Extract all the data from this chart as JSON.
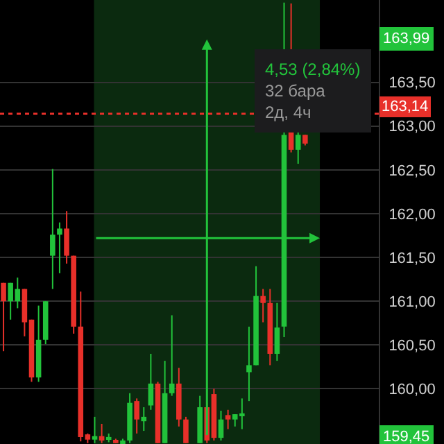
{
  "chart_data": {
    "type": "candlestick",
    "categories": [
      null,
      null,
      null,
      null,
      null,
      null,
      null,
      null,
      null,
      null,
      null,
      null,
      null,
      null,
      null,
      null,
      null,
      null,
      null,
      null,
      null,
      null,
      null,
      null,
      null,
      null,
      null,
      null,
      null,
      null,
      null,
      null,
      null,
      null,
      null,
      null,
      null,
      null,
      null,
      null,
      null,
      null,
      null,
      null,
      null,
      null,
      null,
      null,
      null,
      null,
      null,
      null,
      null,
      null
    ],
    "ohlc": [
      [
        161.21,
        161.21,
        160.43,
        161.0
      ],
      [
        161.0,
        161.21,
        160.79,
        161.21
      ],
      [
        161.0,
        161.27,
        160.92,
        161.14
      ],
      [
        161.14,
        161.14,
        160.6,
        160.76
      ],
      [
        160.79,
        160.79,
        160.08,
        160.13
      ],
      [
        160.13,
        160.95,
        160.08,
        160.56
      ],
      [
        160.56,
        161.0,
        160.51,
        161.0
      ],
      [
        161.52,
        162.51,
        161.14,
        161.76
      ],
      [
        161.76,
        161.9,
        161.32,
        161.83
      ],
      [
        161.83,
        162.03,
        161.43,
        161.52
      ],
      [
        161.52,
        161.52,
        160.63,
        160.71
      ],
      [
        160.71,
        161.11,
        159.4,
        159.45
      ],
      [
        159.48,
        159.49,
        159.38,
        159.42
      ],
      [
        159.42,
        159.68,
        159.38,
        159.46
      ],
      [
        159.46,
        159.6,
        159.38,
        159.41
      ],
      [
        159.42,
        159.49,
        159.39,
        159.45
      ],
      [
        159.41,
        159.43,
        159.38,
        159.38
      ],
      [
        159.38,
        159.43,
        159.38,
        159.41
      ],
      [
        159.41,
        159.95,
        159.38,
        159.84
      ],
      [
        159.86,
        159.89,
        159.49,
        159.65
      ],
      [
        159.63,
        159.79,
        159.52,
        159.68
      ],
      [
        159.81,
        160.4,
        159.76,
        160.06
      ],
      [
        160.06,
        160.08,
        159.38,
        159.38
      ],
      [
        159.38,
        160.32,
        159.38,
        159.95
      ],
      [
        159.95,
        160.84,
        159.92,
        160.06
      ],
      [
        160.06,
        160.24,
        159.57,
        159.65
      ],
      [
        159.65,
        159.68,
        159.38,
        159.38
      ],
      null,
      [
        159.38,
        159.92,
        159.38,
        159.79
      ],
      [
        159.79,
        159.84,
        159.38,
        159.41
      ],
      [
        159.94,
        160.0,
        159.41,
        159.44
      ],
      [
        159.44,
        159.75,
        159.41,
        159.65
      ],
      [
        159.7,
        159.76,
        159.54,
        159.65
      ],
      [
        159.65,
        159.71,
        159.57,
        159.71
      ],
      [
        159.7,
        159.89,
        159.54,
        159.72
      ],
      [
        160.19,
        160.71,
        159.86,
        160.27
      ],
      [
        160.27,
        161.4,
        160.27,
        161.06
      ],
      [
        161.06,
        161.14,
        160.76,
        160.98
      ],
      [
        160.98,
        161.14,
        160.27,
        160.4
      ],
      [
        160.4,
        160.98,
        160.32,
        160.7
      ],
      [
        160.71,
        164.41,
        160.59,
        162.9
      ],
      [
        162.94,
        164.4,
        162.7,
        162.73
      ],
      [
        162.73,
        162.94,
        162.57,
        162.9
      ],
      [
        162.9,
        162.9,
        162.78,
        162.8
      ],
      null,
      null,
      null,
      null,
      null,
      null,
      null,
      null,
      null,
      null
    ],
    "colors": [
      "#e8302a",
      "#22c33b",
      "#22c33b",
      "#e8302a",
      "#e8302a",
      "#22c33b",
      "#22c33b",
      "#22c33b",
      "#22c33b",
      "#e8302a",
      "#e8302a",
      "#e8302a",
      "#e8302a",
      "#22c33b",
      "#e8302a",
      "#22c33b",
      "#e8302a",
      "#22c33b",
      "#22c33b",
      "#e8302a",
      "#22c33b",
      "#22c33b",
      "#e8302a",
      "#22c33b",
      "#22c33b",
      "#e8302a",
      "#e8302a",
      null,
      "#22c33b",
      "#e8302a",
      "#e8302a",
      "#22c33b",
      "#e8302a",
      "#22c33b",
      "#22c33b",
      "#22c33b",
      "#22c33b",
      "#e8302a",
      "#e8302a",
      "#22c33b",
      "#22c33b",
      "#e8302a",
      "#22c33b",
      "#e8302a",
      null,
      null,
      null,
      null,
      null,
      null,
      null,
      null,
      null,
      null
    ],
    "ylim": [
      159.37,
      164.44
    ],
    "yticks": [
      {
        "value": 160,
        "label": "160,00"
      },
      {
        "value": 160.5,
        "label": "160,50"
      },
      {
        "value": 161,
        "label": "161,00"
      },
      {
        "value": 161.5,
        "label": "161,50"
      },
      {
        "value": 162,
        "label": "162,00"
      },
      {
        "value": 162.5,
        "label": "162,50"
      },
      {
        "value": 163,
        "label": "163,00"
      },
      {
        "value": 163.5,
        "label": "163,50"
      }
    ],
    "grid": "y",
    "tick_labels": "y",
    "ref_lines": [
      {
        "axis": "y",
        "value": 163.14,
        "label": "163,14",
        "color": "#e8302a",
        "line_style": "dotted"
      }
    ],
    "annotations": [
      {
        "text": "163,99",
        "y": 163.99
      },
      {
        "text": "159,45",
        "y": 159.45
      },
      "4,53 (2,84%)",
      "32 бара",
      "2д, 4ч"
    ]
  }
}
